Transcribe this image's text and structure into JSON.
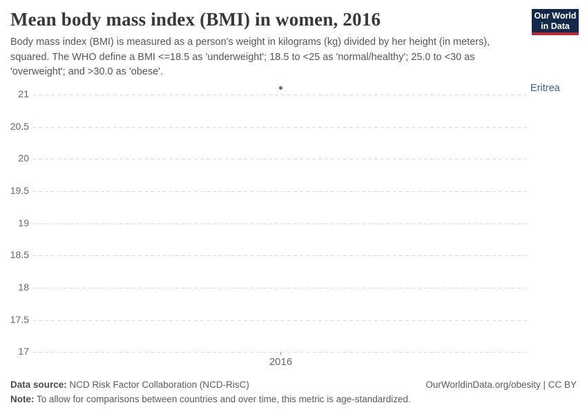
{
  "header": {
    "title": "Mean body mass index (BMI) in women, 2016",
    "subtitle": "Body mass index (BMI) is measured as a person's weight in kilograms (kg) divided by her height (in meters), squared. The WHO define a BMI <=18.5 as 'underweight'; 18.5 to <25 as 'normal/healthy'; 25.0 to <30 as 'overweight'; and >30.0 as 'obese'.",
    "logo": {
      "line1": "Our World",
      "line2": "in Data"
    }
  },
  "chart_data": {
    "type": "scatter",
    "title": "Mean body mass index (BMI) in women, 2016",
    "x": [
      2016
    ],
    "series": [
      {
        "name": "Eritrea",
        "values": [
          21.1
        ]
      }
    ],
    "entity_label": "Eritrea",
    "xticks": [
      "2016"
    ],
    "yticks": [
      21,
      20.5,
      20,
      19.5,
      19,
      18.5,
      18,
      17.5,
      17
    ],
    "ylim": [
      17,
      21.25
    ],
    "xlabel": "",
    "ylabel": "",
    "grid": "horizontal-dashed",
    "legend_position": "right-inline-label",
    "point_color": "#4c6a9c",
    "label_color": "#3d5c94"
  },
  "footer": {
    "source_label": "Data source:",
    "source_text": " NCD Risk Factor Collaboration (NCD-RisC)",
    "link_text": "OurWorldinData.org/obesity | CC BY",
    "note_label": "Note:",
    "note_text": " To allow for comparisons between countries and over time, this metric is age-standardized."
  },
  "colors": {
    "accent_blue": "#4c6a9c",
    "logo_navy": "#12294b",
    "logo_red": "#c0262d",
    "gridline": "#d9d9d9"
  }
}
